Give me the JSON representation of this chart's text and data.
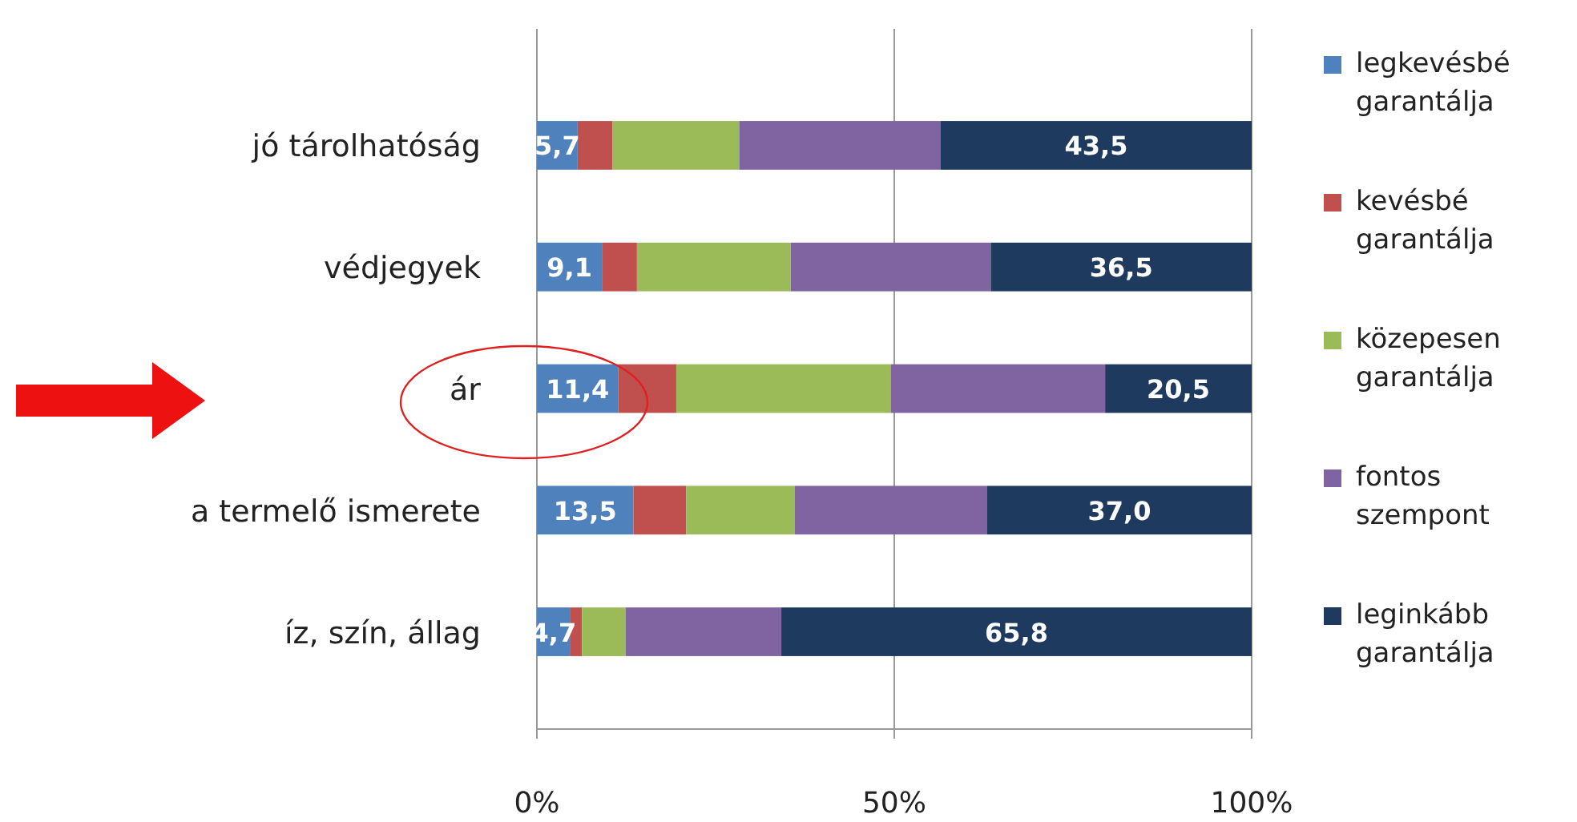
{
  "chart_data": {
    "type": "bar",
    "orientation": "horizontal",
    "stacked": true,
    "categories": [
      "jó tárolhatóság",
      "védjegyek",
      "ár",
      "a termelő ismerete",
      "íz, szín, állag"
    ],
    "series": [
      {
        "name": "legkevésbé garantálja",
        "color": "#4f81bd",
        "values": [
          5.7,
          9.1,
          11.4,
          13.5,
          4.7
        ],
        "value_labels": [
          "5,7",
          "9,1",
          "11,4",
          "13,5",
          "4,7"
        ]
      },
      {
        "name": "kevésbé garantálja",
        "color": "#c0504d",
        "values": [
          4.9,
          4.9,
          8.1,
          7.4,
          1.6
        ]
      },
      {
        "name": "közepesen garantálja",
        "color": "#9bbb59",
        "values": [
          17.7,
          21.5,
          30.0,
          15.2,
          6.1
        ]
      },
      {
        "name": "fontos szempont",
        "color": "#8064a2",
        "values": [
          28.2,
          28.0,
          30.0,
          26.9,
          21.8
        ]
      },
      {
        "name": "leginkább garantálja",
        "color": "#1f3a5f",
        "values": [
          43.5,
          36.5,
          20.5,
          37.0,
          65.8
        ],
        "value_labels": [
          "43,5",
          "36,5",
          "20,5",
          "37,0",
          "65,8"
        ]
      }
    ],
    "xlim": [
      0,
      100
    ],
    "xticks": [
      {
        "value": 0,
        "label": "0%"
      },
      {
        "value": 50,
        "label": "50%"
      },
      {
        "value": 100,
        "label": "100%"
      }
    ],
    "grid": "x",
    "legend": "right"
  }
}
